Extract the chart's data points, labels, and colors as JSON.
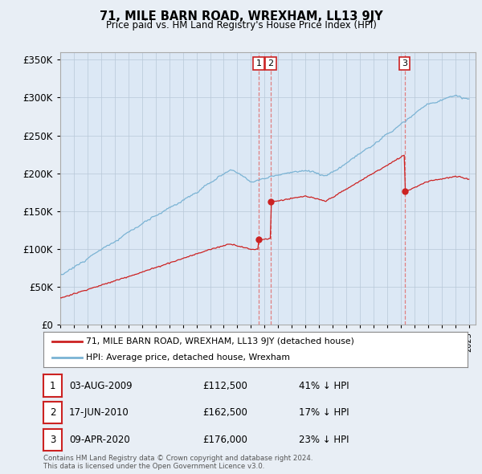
{
  "title": "71, MILE BARN ROAD, WREXHAM, LL13 9JY",
  "subtitle": "Price paid vs. HM Land Registry's House Price Index (HPI)",
  "hpi_color": "#7ab3d4",
  "price_color": "#cc2222",
  "background_color": "#e8eef5",
  "plot_bg_color": "#dce8f5",
  "ylim": [
    0,
    360000
  ],
  "yticks": [
    0,
    50000,
    100000,
    150000,
    200000,
    250000,
    300000,
    350000
  ],
  "ytick_labels": [
    "£0",
    "£50K",
    "£100K",
    "£150K",
    "£200K",
    "£250K",
    "£300K",
    "£350K"
  ],
  "sale_events": [
    {
      "date_num": 2009.58,
      "price": 112500,
      "label": "1"
    },
    {
      "date_num": 2010.46,
      "price": 162500,
      "label": "2"
    },
    {
      "date_num": 2020.27,
      "price": 176000,
      "label": "3"
    }
  ],
  "legend_entries": [
    "71, MILE BARN ROAD, WREXHAM, LL13 9JY (detached house)",
    "HPI: Average price, detached house, Wrexham"
  ],
  "table_rows": [
    {
      "num": "1",
      "date": "03-AUG-2009",
      "price": "£112,500",
      "pct": "41% ↓ HPI"
    },
    {
      "num": "2",
      "date": "17-JUN-2010",
      "price": "£162,500",
      "pct": "17% ↓ HPI"
    },
    {
      "num": "3",
      "date": "09-APR-2020",
      "price": "£176,000",
      "pct": "23% ↓ HPI"
    }
  ],
  "footer": "Contains HM Land Registry data © Crown copyright and database right 2024.\nThis data is licensed under the Open Government Licence v3.0."
}
